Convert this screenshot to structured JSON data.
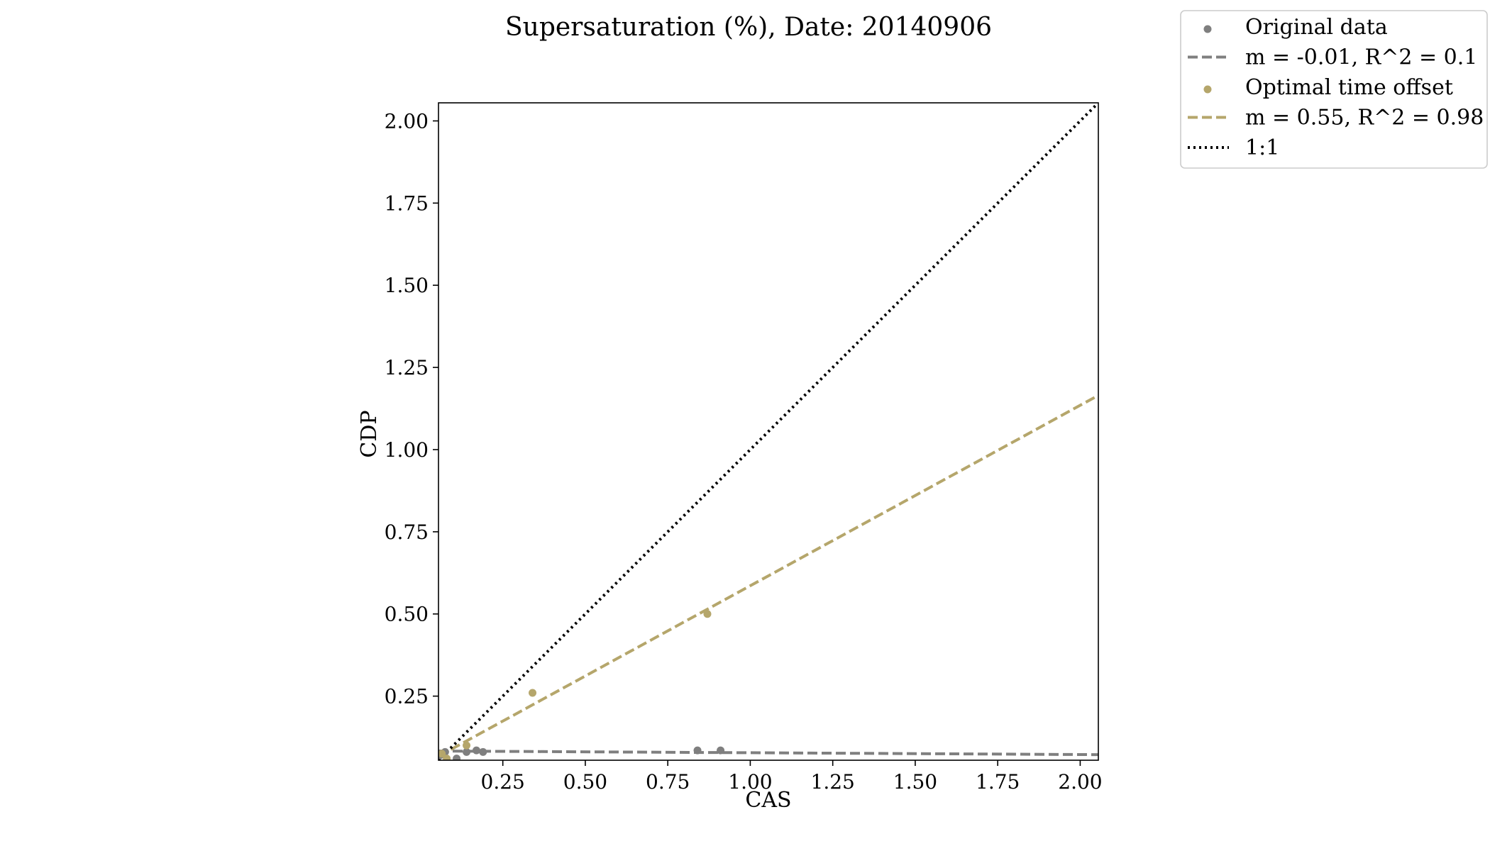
{
  "chart_data": {
    "type": "scatter",
    "title": "Supersaturation (%), Date: 20140906",
    "xlabel": "CAS",
    "ylabel": "CDP",
    "xlim": [
      0.055,
      2.055
    ],
    "ylim": [
      0.055,
      2.055
    ],
    "xticks": [
      0.25,
      0.5,
      0.75,
      1.0,
      1.25,
      1.5,
      1.75,
      2.0
    ],
    "yticks": [
      0.25,
      0.5,
      0.75,
      1.0,
      1.25,
      1.5,
      1.75,
      2.0
    ],
    "tick_format": "0.00",
    "grid": false,
    "legend_position": "top-right, outside plot",
    "series": [
      {
        "name": "Original data",
        "kind": "scatter",
        "color": "#7f7f7f",
        "points": [
          [
            0.06,
            0.07
          ],
          [
            0.075,
            0.08
          ],
          [
            0.11,
            0.06
          ],
          [
            0.14,
            0.08
          ],
          [
            0.17,
            0.085
          ],
          [
            0.19,
            0.08
          ],
          [
            0.84,
            0.085
          ],
          [
            0.91,
            0.085
          ]
        ]
      },
      {
        "name": "m = -0.01, R^2 = 0.1",
        "kind": "line",
        "style": "dashed",
        "color": "#7f7f7f",
        "points": [
          [
            0.055,
            0.083
          ],
          [
            2.055,
            0.072
          ]
        ]
      },
      {
        "name": "Optimal time offset",
        "kind": "scatter",
        "color": "#b5a66b",
        "points": [
          [
            0.065,
            0.075
          ],
          [
            0.08,
            0.06
          ],
          [
            0.14,
            0.1
          ],
          [
            0.34,
            0.26
          ],
          [
            0.87,
            0.5
          ]
        ]
      },
      {
        "name": "m = 0.55, R^2 = 0.98",
        "kind": "line",
        "style": "dashed",
        "color": "#b5a66b",
        "points": [
          [
            0.055,
            0.067
          ],
          [
            2.055,
            1.165
          ]
        ]
      },
      {
        "name": "1:1",
        "kind": "line",
        "style": "dotted",
        "color": "#000000",
        "points": [
          [
            0.055,
            0.055
          ],
          [
            2.055,
            2.055
          ]
        ]
      }
    ]
  }
}
